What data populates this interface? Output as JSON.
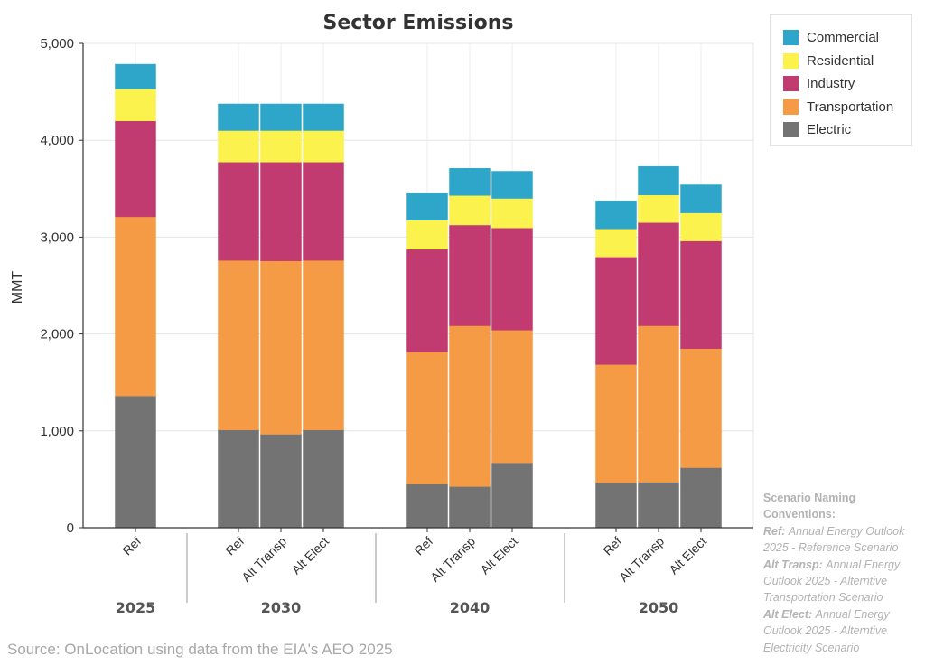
{
  "chart_data": {
    "type": "bar",
    "stacked": true,
    "title": "Sector Emissions",
    "ylabel": "MMT",
    "ylim": [
      0,
      5000
    ],
    "yticks": [
      0,
      1000,
      2000,
      3000,
      4000,
      5000
    ],
    "ytick_labels": [
      "0",
      "1,000",
      "2,000",
      "3,000",
      "4,000",
      "5,000"
    ],
    "grid": true,
    "legend_position": "top-right",
    "groups": [
      {
        "label": "2025",
        "categories": [
          "Ref"
        ]
      },
      {
        "label": "2030",
        "categories": [
          "Ref",
          "Alt Transp",
          "Alt Elect"
        ]
      },
      {
        "label": "2040",
        "categories": [
          "Ref",
          "Alt Transp",
          "Alt Elect"
        ]
      },
      {
        "label": "2050",
        "categories": [
          "Ref",
          "Alt Transp",
          "Alt Elect"
        ]
      }
    ],
    "series": [
      {
        "name": "Electric",
        "color": "#737373",
        "values": [
          1360,
          1010,
          965,
          1010,
          450,
          425,
          670,
          465,
          470,
          620
        ]
      },
      {
        "name": "Transportation",
        "color": "#f59a45",
        "values": [
          1850,
          1750,
          1790,
          1750,
          1365,
          1660,
          1370,
          1220,
          1615,
          1230
        ]
      },
      {
        "name": "Industry",
        "color": "#c13a70",
        "values": [
          990,
          1015,
          1020,
          1015,
          1060,
          1040,
          1055,
          1110,
          1065,
          1110
        ]
      },
      {
        "name": "Residential",
        "color": "#fbf24e",
        "values": [
          330,
          325,
          325,
          325,
          300,
          305,
          305,
          290,
          285,
          290
        ]
      },
      {
        "name": "Commercial",
        "color": "#2ea6c9",
        "values": [
          255,
          275,
          275,
          275,
          275,
          280,
          280,
          290,
          295,
          290
        ]
      }
    ],
    "legend_order": [
      "Commercial",
      "Residential",
      "Industry",
      "Transportation",
      "Electric"
    ]
  },
  "notes": {
    "heading": "Scenario Naming Conventions:",
    "items": [
      {
        "key": "Ref:",
        "text": "Annual Energy Outlook 2025 - Reference Scenario"
      },
      {
        "key": "Alt Transp:",
        "text": "Annual Energy Outlook 2025 - Alterntive Transportation Scenario"
      },
      {
        "key": "Alt Elect:",
        "text": "Annual Energy Outlook 2025 - Alterntive Electricity Scenario"
      }
    ]
  },
  "source": "Source: OnLocation using data from the EIA's AEO 2025"
}
